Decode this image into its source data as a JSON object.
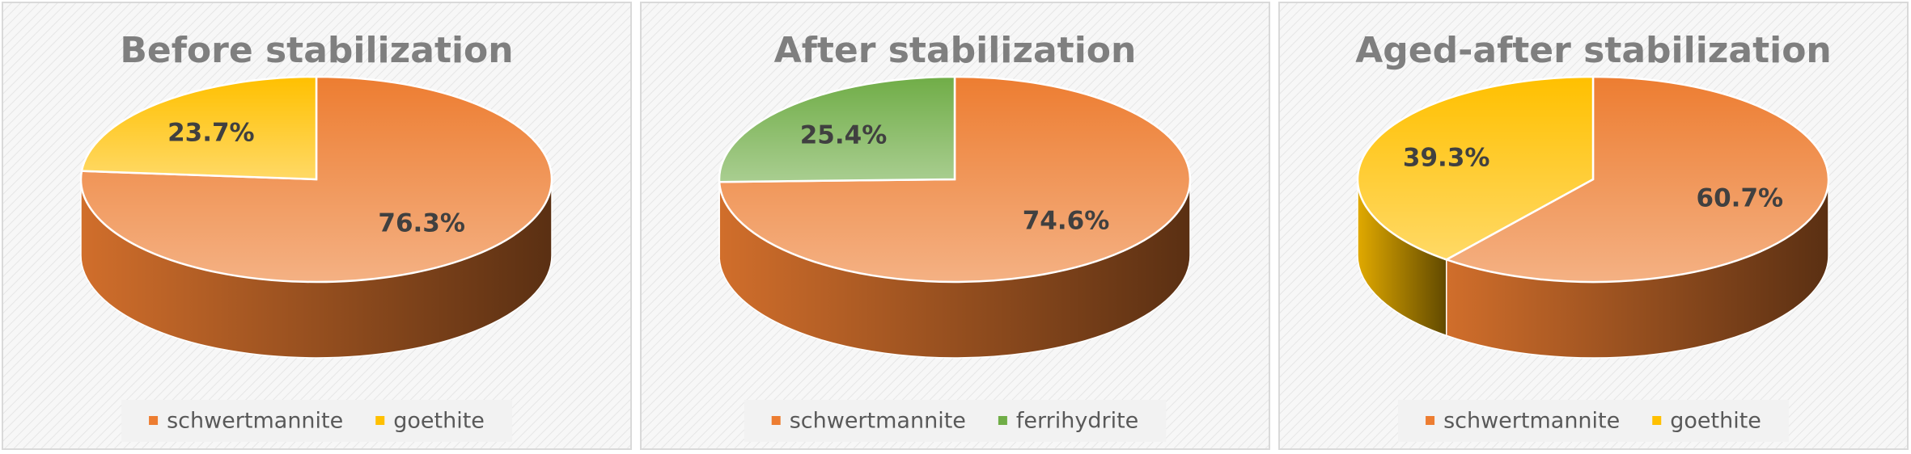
{
  "chart_data": [
    {
      "type": "pie",
      "title": "Before stabilization",
      "categories": [
        "schwertmannite",
        "goethite"
      ],
      "values": [
        76.3,
        23.7
      ],
      "value_labels": [
        "76.3%",
        "23.7%"
      ],
      "colors": [
        "#ed7d31",
        "#ffc000"
      ]
    },
    {
      "type": "pie",
      "title": "After stabilization",
      "categories": [
        "schwertmannite",
        "ferrihydrite"
      ],
      "values": [
        74.6,
        25.4
      ],
      "value_labels": [
        "74.6%",
        "25.4%"
      ],
      "colors": [
        "#ed7d31",
        "#70ad47"
      ]
    },
    {
      "type": "pie",
      "title": "Aged-after stabilization",
      "categories": [
        "schwertmannite",
        "goethite"
      ],
      "values": [
        60.7,
        39.3
      ],
      "value_labels": [
        "60.7%",
        "39.3%"
      ],
      "colors": [
        "#ed7d31",
        "#ffc000"
      ]
    }
  ]
}
